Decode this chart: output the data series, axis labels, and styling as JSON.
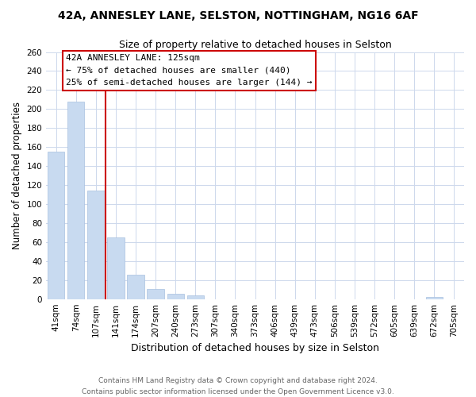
{
  "title": "42A, ANNESLEY LANE, SELSTON, NOTTINGHAM, NG16 6AF",
  "subtitle": "Size of property relative to detached houses in Selston",
  "xlabel": "Distribution of detached houses by size in Selston",
  "ylabel": "Number of detached properties",
  "bar_labels": [
    "41sqm",
    "74sqm",
    "107sqm",
    "141sqm",
    "174sqm",
    "207sqm",
    "240sqm",
    "273sqm",
    "307sqm",
    "340sqm",
    "373sqm",
    "406sqm",
    "439sqm",
    "473sqm",
    "506sqm",
    "539sqm",
    "572sqm",
    "605sqm",
    "639sqm",
    "672sqm",
    "705sqm"
  ],
  "bar_values": [
    155,
    208,
    114,
    65,
    26,
    11,
    6,
    4,
    0,
    0,
    0,
    0,
    0,
    0,
    0,
    0,
    0,
    0,
    0,
    2,
    0
  ],
  "bar_color": "#c8daf0",
  "bar_edge_color": "#a8c0e0",
  "vline_color": "#cc0000",
  "vline_x_index": 2.5,
  "annotation_title": "42A ANNESLEY LANE: 125sqm",
  "annotation_line1": "← 75% of detached houses are smaller (440)",
  "annotation_line2": "25% of semi-detached houses are larger (144) →",
  "annotation_box_color": "#ffffff",
  "annotation_box_edge": "#cc0000",
  "ylim": [
    0,
    260
  ],
  "yticks": [
    0,
    20,
    40,
    60,
    80,
    100,
    120,
    140,
    160,
    180,
    200,
    220,
    240,
    260
  ],
  "footer_line1": "Contains HM Land Registry data © Crown copyright and database right 2024.",
  "footer_line2": "Contains public sector information licensed under the Open Government Licence v3.0.",
  "bg_color": "#ffffff",
  "grid_color": "#cdd8ec"
}
